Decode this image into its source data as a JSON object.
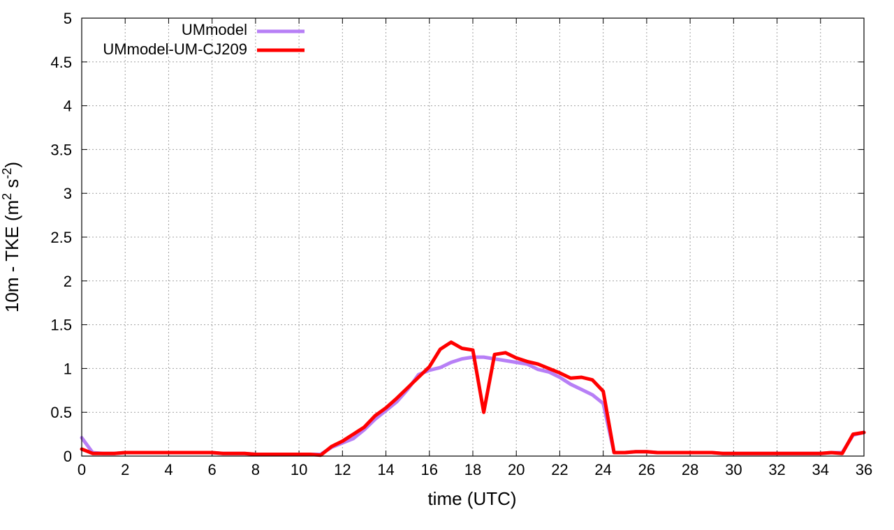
{
  "chart_data": {
    "type": "line",
    "xlabel": "time (UTC)",
    "ylabel_text": "10m - TKE (m",
    "ylabel_sup1": "2",
    "ylabel_mid": " s",
    "ylabel_sup2": "-2",
    "ylabel_end": ")",
    "xlim": [
      0,
      36
    ],
    "ylim": [
      0,
      5
    ],
    "xticks": [
      "0",
      "2",
      "4",
      "6",
      "8",
      "10",
      "12",
      "14",
      "16",
      "18",
      "20",
      "22",
      "24",
      "26",
      "28",
      "30",
      "32",
      "34",
      "36"
    ],
    "yticks": [
      "0",
      "0.5",
      "1",
      "1.5",
      "2",
      "2.5",
      "3",
      "3.5",
      "4",
      "4.5",
      "5"
    ],
    "grid": true,
    "legend_position": "top-left",
    "series": [
      {
        "name": "UMmodel",
        "color": "#b77ff6",
        "x": [
          0,
          0.5,
          1,
          1.5,
          2,
          2.5,
          3,
          3.5,
          4,
          4.5,
          5,
          5.5,
          6,
          6.5,
          7,
          7.5,
          8,
          8.5,
          9,
          9.5,
          10,
          10.5,
          11,
          11.5,
          12,
          12.5,
          13,
          13.5,
          14,
          14.5,
          15,
          15.5,
          16,
          16.5,
          17,
          17.5,
          18,
          18.5,
          19,
          19.5,
          20,
          20.5,
          21,
          21.5,
          22,
          22.5,
          23,
          23.5,
          24,
          24.5,
          25,
          25.5,
          26,
          26.5,
          27,
          27.5,
          28,
          28.5,
          29,
          29.5,
          30,
          30.5,
          31,
          31.5,
          32,
          32.5,
          33,
          33.5,
          34,
          34.5,
          35,
          35.5,
          36
        ],
        "values": [
          0.21,
          0.04,
          0.03,
          0.03,
          0.04,
          0.04,
          0.04,
          0.04,
          0.04,
          0.04,
          0.04,
          0.04,
          0.04,
          0.03,
          0.03,
          0.03,
          0.02,
          0.02,
          0.02,
          0.02,
          0.02,
          0.02,
          0.02,
          0.1,
          0.15,
          0.2,
          0.3,
          0.42,
          0.52,
          0.62,
          0.76,
          0.93,
          0.98,
          1.01,
          1.07,
          1.11,
          1.13,
          1.13,
          1.11,
          1.09,
          1.07,
          1.05,
          0.99,
          0.96,
          0.9,
          0.82,
          0.76,
          0.7,
          0.6,
          0.04,
          0.04,
          0.05,
          0.05,
          0.04,
          0.04,
          0.04,
          0.04,
          0.04,
          0.04,
          0.03,
          0.03,
          0.03,
          0.03,
          0.03,
          0.03,
          0.03,
          0.03,
          0.03,
          0.03,
          0.04,
          0.04,
          0.24,
          0.27
        ]
      },
      {
        "name": "UMmodel-UM-CJ209",
        "color": "#ff0000",
        "x": [
          0,
          0.5,
          1,
          1.5,
          2,
          2.5,
          3,
          3.5,
          4,
          4.5,
          5,
          5.5,
          6,
          6.5,
          7,
          7.5,
          8,
          8.5,
          9,
          9.5,
          10,
          10.5,
          11,
          11.5,
          12,
          12.5,
          13,
          13.5,
          14,
          14.5,
          15,
          15.5,
          16,
          16.5,
          17,
          17.5,
          18,
          18.5,
          19,
          19.5,
          20,
          20.5,
          21,
          21.5,
          22,
          22.5,
          23,
          23.5,
          24,
          24.5,
          25,
          25.5,
          26,
          26.5,
          27,
          27.5,
          28,
          28.5,
          29,
          29.5,
          30,
          30.5,
          31,
          31.5,
          32,
          32.5,
          33,
          33.5,
          34,
          34.5,
          35,
          35.5,
          36
        ],
        "values": [
          0.08,
          0.03,
          0.03,
          0.03,
          0.04,
          0.04,
          0.04,
          0.04,
          0.04,
          0.04,
          0.04,
          0.04,
          0.04,
          0.03,
          0.03,
          0.03,
          0.02,
          0.02,
          0.02,
          0.02,
          0.02,
          0.02,
          0.01,
          0.11,
          0.17,
          0.25,
          0.33,
          0.46,
          0.55,
          0.66,
          0.78,
          0.9,
          1.02,
          1.22,
          1.3,
          1.23,
          1.21,
          0.5,
          1.16,
          1.18,
          1.12,
          1.08,
          1.05,
          1.0,
          0.95,
          0.89,
          0.9,
          0.87,
          0.74,
          0.04,
          0.04,
          0.05,
          0.05,
          0.04,
          0.04,
          0.04,
          0.04,
          0.04,
          0.04,
          0.03,
          0.03,
          0.03,
          0.03,
          0.03,
          0.03,
          0.03,
          0.03,
          0.03,
          0.03,
          0.04,
          0.03,
          0.25,
          0.27
        ]
      }
    ]
  }
}
